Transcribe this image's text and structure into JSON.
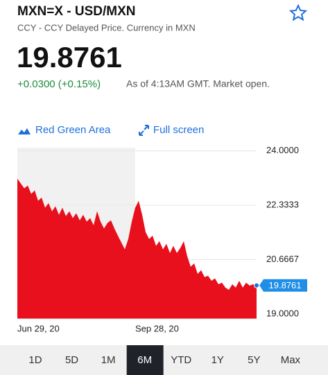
{
  "header": {
    "title": "MXN=X - USD/MXN",
    "subtitle": "CCY - CCY Delayed Price. Currency in MXN",
    "price": "19.8761",
    "change": "+0.0300 (+0.15%)",
    "status": "As of 4:13AM GMT. Market open."
  },
  "toolbar": {
    "chart_type": "Red Green Area",
    "fullscreen": "Full screen"
  },
  "tabs": {
    "items": [
      "1D",
      "5D",
      "1M",
      "6M",
      "YTD",
      "1Y",
      "5Y",
      "Max"
    ],
    "selected": "6M"
  },
  "chart_data": {
    "type": "area",
    "color": "#e8101c",
    "grid": true,
    "categories": [
      "Jun 29, 20",
      null,
      null,
      null,
      null,
      null,
      null,
      null,
      null,
      null,
      null,
      null,
      null,
      null,
      null,
      null,
      null,
      null,
      null,
      null,
      null,
      null,
      null,
      null,
      null,
      null,
      null,
      null,
      null,
      null,
      null,
      null,
      null,
      null,
      "Sep 28, 20",
      null,
      null,
      null,
      null,
      null,
      null,
      null,
      null,
      null,
      null,
      null,
      null,
      null,
      null,
      null,
      null,
      null,
      null,
      null,
      null,
      null,
      null,
      null,
      null,
      null,
      null,
      null,
      null,
      null,
      null,
      null,
      null,
      null,
      null,
      null
    ],
    "values": [
      23.15,
      23.0,
      22.85,
      22.94,
      22.68,
      22.79,
      22.47,
      22.57,
      22.26,
      22.4,
      22.15,
      22.3,
      22.04,
      22.26,
      22.0,
      22.15,
      21.94,
      22.09,
      21.87,
      22.04,
      21.83,
      21.94,
      21.72,
      22.15,
      21.83,
      21.62,
      21.79,
      21.87,
      21.62,
      21.4,
      21.19,
      20.98,
      21.3,
      21.83,
      22.26,
      22.47,
      22.04,
      21.51,
      21.3,
      21.4,
      21.09,
      21.23,
      20.98,
      21.15,
      20.87,
      21.09,
      20.87,
      21.02,
      21.23,
      20.77,
      20.45,
      20.55,
      20.23,
      20.34,
      20.13,
      20.17,
      20.02,
      20.09,
      19.91,
      19.96,
      19.81,
      19.74,
      19.91,
      19.81,
      20.02,
      19.81,
      19.96,
      19.87,
      19.91,
      19.8761
    ],
    "ylim": [
      18.85,
      24.1
    ],
    "yticks": [
      {
        "value": 24,
        "label": "24.0000"
      },
      {
        "value": 22.3333,
        "label": "22.3333"
      },
      {
        "value": 20.6667,
        "label": "20.6667"
      },
      {
        "value": 19,
        "label": "19.0000"
      }
    ]
  }
}
